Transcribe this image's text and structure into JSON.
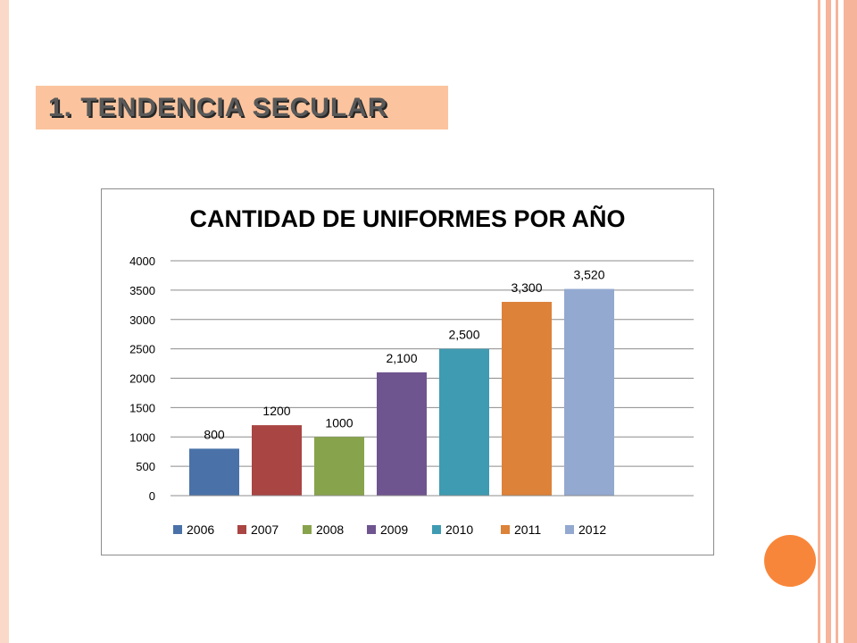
{
  "slide": {
    "heading": "1.  TENDENCIA SECULAR",
    "colors": {
      "heading_bg": "#fbc49e",
      "accent": "#f8863a",
      "frame": "#f6b59b"
    }
  },
  "chart_data": {
    "type": "bar",
    "title": "CANTIDAD DE UNIFORMES POR AÑO",
    "xlabel": "",
    "ylabel": "",
    "ylim": [
      0,
      4000
    ],
    "yticks": [
      "0",
      "500",
      "1000",
      "1500",
      "2000",
      "2500",
      "3000",
      "3500",
      "4000"
    ],
    "ytick_values": [
      0,
      500,
      1000,
      1500,
      2000,
      2500,
      3000,
      3500,
      4000
    ],
    "grid": true,
    "legend_position": "bottom",
    "series": [
      {
        "name": "2006",
        "value": 800,
        "label": "800",
        "color": "#4a72a8"
      },
      {
        "name": "2007",
        "value": 1200,
        "label": "1200",
        "color": "#a94543"
      },
      {
        "name": "2008",
        "value": 1000,
        "label": "1000",
        "color": "#87a34c"
      },
      {
        "name": "2009",
        "value": 2100,
        "label": "2,100",
        "color": "#6f558f"
      },
      {
        "name": "2010",
        "value": 2500,
        "label": "2,500",
        "color": "#3f9bb1"
      },
      {
        "name": "2011",
        "value": 3300,
        "label": "3,300",
        "color": "#dc8239"
      },
      {
        "name": "2012",
        "value": 3520,
        "label": "3,520",
        "color": "#93a9d0"
      }
    ]
  }
}
